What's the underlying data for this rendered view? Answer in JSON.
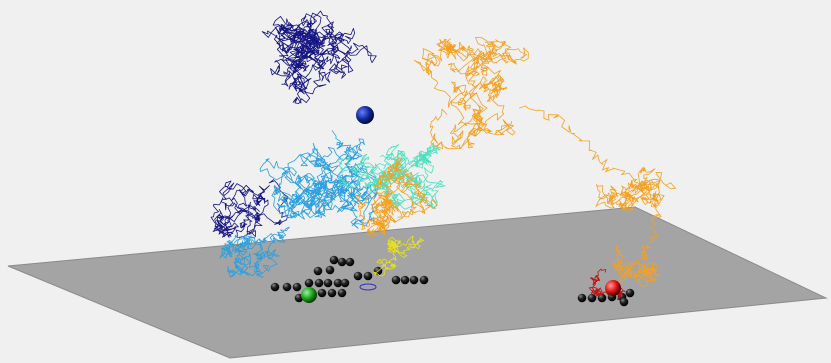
{
  "scene": {
    "background": "#f0f0f0",
    "plane_color": "#a4a4a4",
    "plane_edge_color": "#8a8a8a",
    "trajectories": [
      {
        "id": "navy",
        "color": "#151583"
      },
      {
        "id": "sky",
        "color": "#2aa0e0"
      },
      {
        "id": "aqua",
        "color": "#4fe0c0"
      },
      {
        "id": "orange",
        "color": "#f5a020"
      },
      {
        "id": "yellow",
        "color": "#e6e020"
      },
      {
        "id": "red",
        "color": "#c01010"
      }
    ],
    "spheres": [
      {
        "id": "blue-sphere",
        "color": "#102a9a"
      },
      {
        "id": "green-sphere",
        "color": "#18a018"
      },
      {
        "id": "red-sphere",
        "color": "#e01010"
      }
    ],
    "bead_color": "#101010"
  }
}
